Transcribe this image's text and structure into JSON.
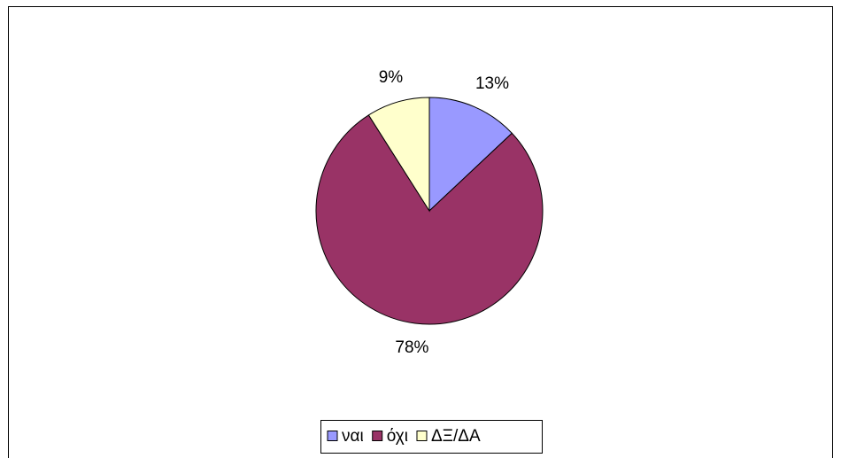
{
  "chart_data": {
    "type": "pie",
    "categories": [
      "ναι",
      "όχι",
      "ΔΞ/ΔΑ"
    ],
    "values": [
      13,
      78,
      9
    ],
    "value_labels": [
      "13%",
      "78%",
      "9%"
    ],
    "colors": [
      "#9999ff",
      "#993366",
      "#ffffcc"
    ],
    "legend": "bottom"
  }
}
